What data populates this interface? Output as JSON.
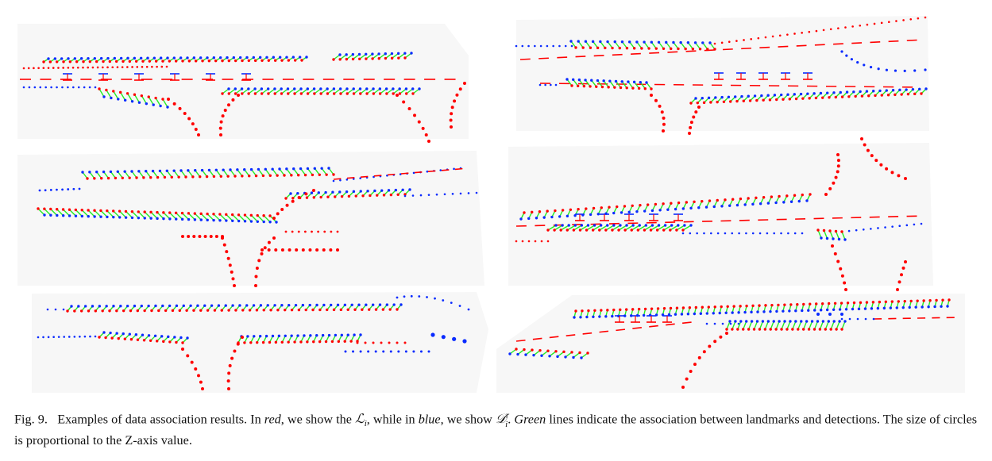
{
  "figure": {
    "colors": {
      "landmark": "#ff0000",
      "detection": "#0a2bff",
      "association": "#22ee22",
      "panel_background": "#f6f6f6"
    }
  },
  "caption": {
    "prefix": "Fig. 9.",
    "text_1": "Examples of data association results. In",
    "red_word": "red",
    "text_2": ", we show the",
    "landmark_symbol": "ℒ",
    "landmark_sub": "i",
    "text_3": ", while in",
    "blue_word": "blue",
    "text_4": ", we show",
    "detection_symbol": "𝒟",
    "detection_sub": "i",
    "detection_sup": "r",
    "text_5": ".",
    "green_word": "Green",
    "text_6": "lines indicate the association between landmarks and detections. The size of circles is proportional to the Z-axis value."
  }
}
